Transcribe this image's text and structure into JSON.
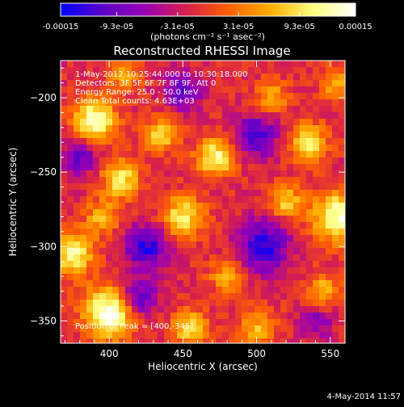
{
  "chart_data": {
    "type": "heatmap",
    "title": "Reconstructed RHESSI Image",
    "xlabel": "Heliocentric X (arcsec)",
    "ylabel": "Heliocentric Y (arcsec)",
    "x_ticks": [
      400,
      450,
      500,
      550
    ],
    "y_ticks": [
      -200,
      -250,
      -300,
      -350
    ],
    "xlim": [
      367,
      560
    ],
    "ylim": [
      -365,
      -175
    ],
    "colorbar": {
      "tick_labels": [
        "-0.00015",
        "-9.3e-05",
        "-3.1e-05",
        "3.1e-05",
        "9.3e-05",
        "0.00015"
      ],
      "unit_label": "(photons cm⁻² s⁻¹ asec⁻²)",
      "range": [
        -0.00015,
        0.00015
      ],
      "colors": [
        "#0000ff",
        "#5a00c8",
        "#9a00b4",
        "#d8204a",
        "#ff6000",
        "#ffb000",
        "#ffff80",
        "#ffffff"
      ]
    },
    "annotations": [
      "1-May-2012 10:25:44.000 to 10:30:18.000",
      "Detectors: 3F 5F 6F 7F 8F 9F, Att 0",
      "Energy Range: 25.0 - 50.0 keV",
      "Clean      Total counts: 4.63E+03"
    ],
    "peak_label": "Position of Peak = [400,-345]",
    "peak": [
      400,
      -345
    ],
    "blobs": [
      {
        "x": 400,
        "y": -345,
        "v": 1.0,
        "r": 12
      },
      {
        "x": 390,
        "y": -215,
        "v": 0.9,
        "r": 10
      },
      {
        "x": 555,
        "y": -280,
        "v": 0.9,
        "r": 12
      },
      {
        "x": 472,
        "y": -240,
        "v": 0.8,
        "r": 9
      },
      {
        "x": 408,
        "y": -255,
        "v": 0.7,
        "r": 9
      },
      {
        "x": 450,
        "y": -280,
        "v": 0.7,
        "r": 10
      },
      {
        "x": 535,
        "y": -230,
        "v": 0.7,
        "r": 9
      },
      {
        "x": 520,
        "y": -270,
        "v": 0.6,
        "r": 8
      },
      {
        "x": 435,
        "y": -225,
        "v": 0.6,
        "r": 8
      },
      {
        "x": 375,
        "y": -305,
        "v": 0.8,
        "r": 10
      },
      {
        "x": 480,
        "y": -320,
        "v": 0.5,
        "r": 8
      },
      {
        "x": 455,
        "y": -355,
        "v": 0.6,
        "r": 9
      },
      {
        "x": 500,
        "y": -355,
        "v": 0.5,
        "r": 9
      },
      {
        "x": 545,
        "y": -330,
        "v": 0.5,
        "r": 8
      },
      {
        "x": 395,
        "y": -280,
        "v": 0.5,
        "r": 8
      },
      {
        "x": 510,
        "y": -200,
        "v": 0.5,
        "r": 8
      },
      {
        "x": 555,
        "y": -190,
        "v": 0.5,
        "r": 8
      },
      {
        "x": 410,
        "y": -185,
        "v": 0.4,
        "r": 8
      },
      {
        "x": 500,
        "y": -225,
        "v": -0.6,
        "r": 10
      },
      {
        "x": 425,
        "y": -300,
        "v": -0.7,
        "r": 10
      },
      {
        "x": 505,
        "y": -300,
        "v": -0.7,
        "r": 12
      },
      {
        "x": 420,
        "y": -335,
        "v": -0.6,
        "r": 9
      },
      {
        "x": 450,
        "y": -195,
        "v": -0.5,
        "r": 9
      },
      {
        "x": 380,
        "y": -240,
        "v": -0.5,
        "r": 8
      },
      {
        "x": 540,
        "y": -350,
        "v": -0.4,
        "r": 8
      }
    ]
  },
  "footer": {
    "timestamp": "4-May-2014 11:57"
  }
}
